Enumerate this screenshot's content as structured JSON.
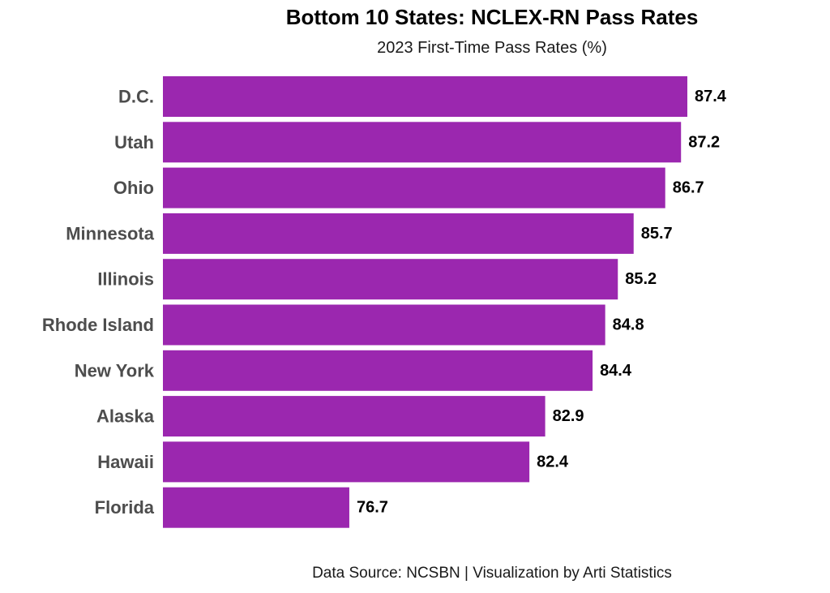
{
  "chart_data": {
    "type": "bar",
    "orientation": "horizontal",
    "title": "Bottom 10 States: NCLEX-RN Pass Rates",
    "subtitle": "2023 First-Time Pass Rates (%)",
    "caption": "Data Source: NCSBN | Visualization by Arti Statistics",
    "categories": [
      "D.C.",
      "Utah",
      "Ohio",
      "Minnesota",
      "Illinois",
      "Rhode Island",
      "New York",
      "Alaska",
      "Hawaii",
      "Florida"
    ],
    "values": [
      87.4,
      87.2,
      86.7,
      85.7,
      85.2,
      84.8,
      84.4,
      82.9,
      82.4,
      76.7
    ],
    "value_labels": [
      "87.4",
      "87.2",
      "86.7",
      "85.7",
      "85.2",
      "84.8",
      "84.4",
      "82.9",
      "82.4",
      "76.7"
    ],
    "xlim": [
      70.8,
      87.4
    ],
    "xlabel": "",
    "ylabel": "",
    "grid": false,
    "bar_color": "#9B27AF"
  }
}
